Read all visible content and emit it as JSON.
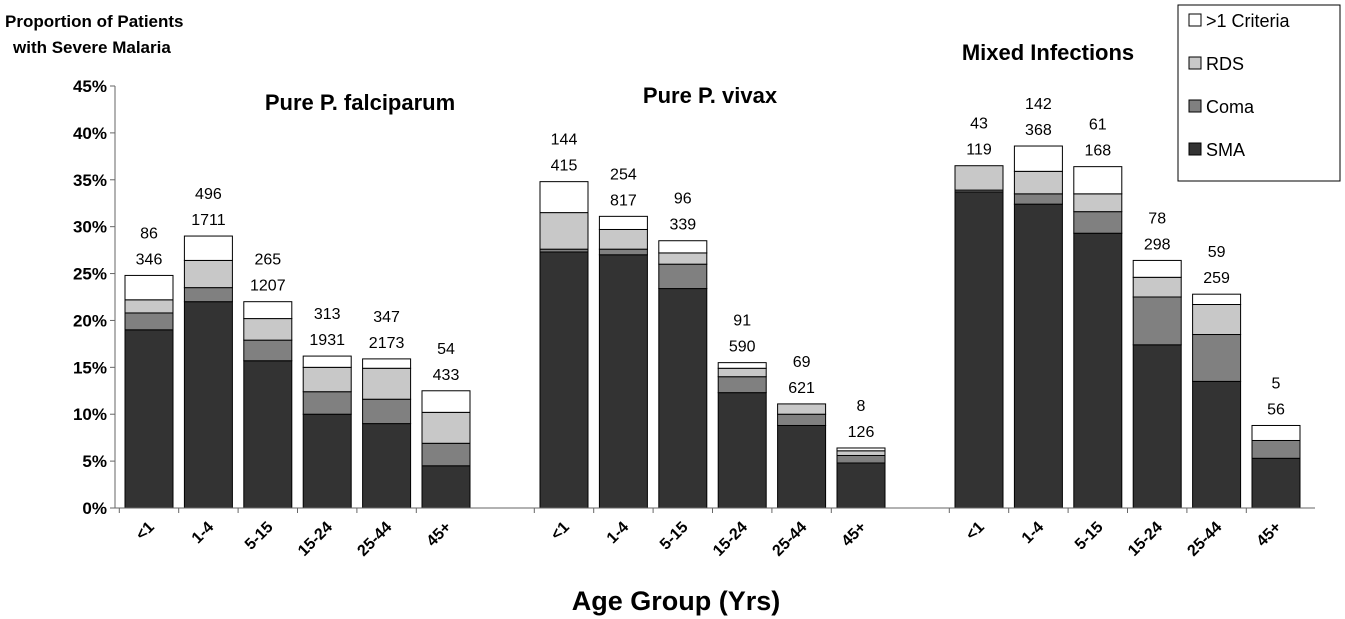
{
  "chart_data": {
    "type": "bar",
    "stacked": true,
    "ylabel": [
      "Proportion of Patients",
      "with Severe Malaria"
    ],
    "xlabel": "Age Group (Yrs)",
    "ylim": [
      0,
      45
    ],
    "yticks": [
      "0%",
      "5%",
      "10%",
      "15%",
      "20%",
      "25%",
      "30%",
      "35%",
      "40%",
      "45%"
    ],
    "ytick_values": [
      0,
      5,
      10,
      15,
      20,
      25,
      30,
      35,
      40,
      45
    ],
    "categories": [
      "<1",
      "1-4",
      "5-15",
      "15-24",
      "25-44",
      "45+"
    ],
    "legend": {
      "position": "top-right",
      "entries": [
        {
          "name": ">1 Criteria",
          "color": "#ffffff"
        },
        {
          "name": "RDS",
          "color": "#c8c8c8"
        },
        {
          "name": "Coma",
          "color": "#808080"
        },
        {
          "name": "SMA",
          "color": "#333333"
        }
      ]
    },
    "colors": {
      "SMA": "#333333",
      "Coma": "#808080",
      "RDS": "#c8c8c8",
      ">1 Criteria": "#ffffff"
    },
    "panels": [
      {
        "title": "Pure P. falciparum",
        "series": [
          {
            "name": "SMA",
            "values": [
              19.0,
              22.0,
              15.7,
              10.0,
              9.0,
              4.5
            ]
          },
          {
            "name": "Coma",
            "values": [
              1.8,
              1.5,
              2.2,
              2.4,
              2.6,
              2.4
            ]
          },
          {
            "name": "RDS",
            "values": [
              1.4,
              2.9,
              2.3,
              2.6,
              3.3,
              3.3
            ]
          },
          {
            "name": ">1 Criteria",
            "values": [
              2.6,
              2.6,
              1.8,
              1.2,
              1.0,
              2.3
            ]
          }
        ],
        "labels_top": [
          "86",
          "496",
          "265",
          "313",
          "347",
          "54"
        ],
        "labels_bottom": [
          "346",
          "1711",
          "1207",
          "1931",
          "2173",
          "433"
        ]
      },
      {
        "title": "Pure P. vivax",
        "series": [
          {
            "name": "SMA",
            "values": [
              27.3,
              27.0,
              23.4,
              12.3,
              8.8,
              4.8
            ]
          },
          {
            "name": "Coma",
            "values": [
              0.3,
              0.6,
              2.6,
              1.7,
              1.2,
              0.8
            ]
          },
          {
            "name": "RDS",
            "values": [
              3.9,
              2.1,
              1.2,
              0.9,
              1.1,
              0.5
            ]
          },
          {
            "name": ">1 Criteria",
            "values": [
              3.3,
              1.4,
              1.3,
              0.6,
              0.0,
              0.3
            ]
          }
        ],
        "labels_top": [
          "144",
          "254",
          "96",
          "91",
          "69",
          "8"
        ],
        "labels_bottom": [
          "415",
          "817",
          "339",
          "590",
          "621",
          "126"
        ]
      },
      {
        "title": "Mixed Infections",
        "series": [
          {
            "name": "SMA",
            "values": [
              33.7,
              32.4,
              29.3,
              17.4,
              13.5,
              5.3
            ]
          },
          {
            "name": "Coma",
            "values": [
              0.2,
              1.1,
              2.3,
              5.1,
              5.0,
              1.9
            ]
          },
          {
            "name": "RDS",
            "values": [
              2.6,
              2.4,
              1.9,
              2.1,
              3.2,
              0.0
            ]
          },
          {
            "name": ">1 Criteria",
            "values": [
              0.0,
              2.7,
              2.9,
              1.8,
              1.1,
              1.6
            ]
          }
        ],
        "labels_top": [
          "43",
          "142",
          "61",
          "78",
          "59",
          "5"
        ],
        "labels_bottom": [
          "119",
          "368",
          "168",
          "298",
          "259",
          "56"
        ]
      }
    ]
  }
}
